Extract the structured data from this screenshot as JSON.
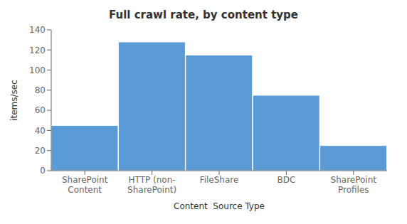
{
  "chart_data": {
    "type": "bar",
    "title": "Full crawl rate, by content type",
    "xlabel": "Content  Source Type",
    "ylabel": "items/sec",
    "categories": [
      "SharePoint\nContent",
      "HTTP (non-\nSharePoint)",
      "FileShare",
      "BDC",
      "SharePoint\nProfiles"
    ],
    "values": [
      45,
      128,
      115,
      75,
      25
    ],
    "color": "#5B9BD5",
    "ylim": [
      0,
      140
    ],
    "yticks": [
      0,
      20,
      40,
      60,
      80,
      100,
      120,
      140
    ],
    "grid": false
  }
}
